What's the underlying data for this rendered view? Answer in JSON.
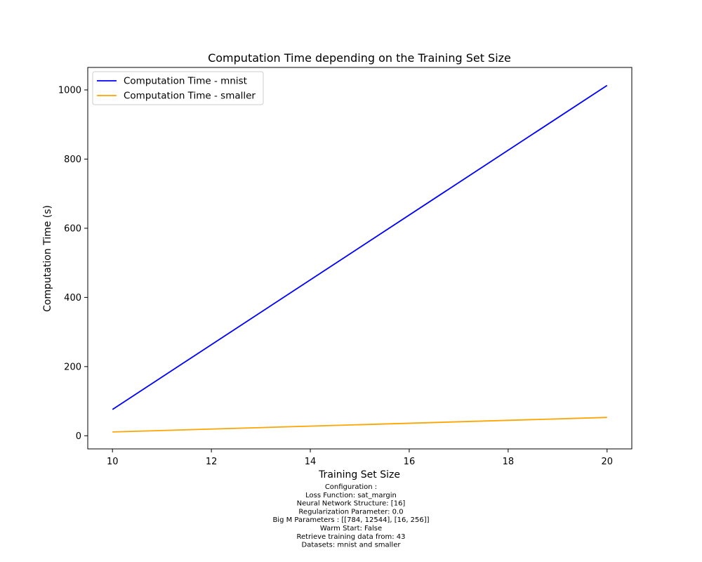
{
  "chart_data": {
    "type": "line",
    "title": "Computation Time depending on the Training Set Size",
    "xlabel": "Training Set Size",
    "ylabel": "Computation Time (s)",
    "xlim": [
      9.5,
      20.5
    ],
    "ylim": [
      -38,
      1065
    ],
    "xticks": [
      10,
      12,
      14,
      16,
      18,
      20
    ],
    "yticks": [
      0,
      200,
      400,
      600,
      800,
      1000
    ],
    "grid": false,
    "legend_position": "upper-left",
    "series": [
      {
        "name": "Computation Time - mnist",
        "color": "#0000ff",
        "x": [
          10,
          20
        ],
        "y": [
          76,
          1013
        ]
      },
      {
        "name": "Computation Time - smaller",
        "color": "#ffa500",
        "x": [
          10,
          20
        ],
        "y": [
          11,
          53
        ]
      }
    ],
    "caption": [
      "Configuration :",
      "Loss Function: sat_margin",
      "Neural Network Structure: [16]",
      "Regularization Parameter: 0.0",
      "Big M Parameters : [[784, 12544], [16, 256]]",
      "Warm Start: False",
      "Retrieve training data from: 43",
      "Datasets: mnist and smaller"
    ]
  }
}
